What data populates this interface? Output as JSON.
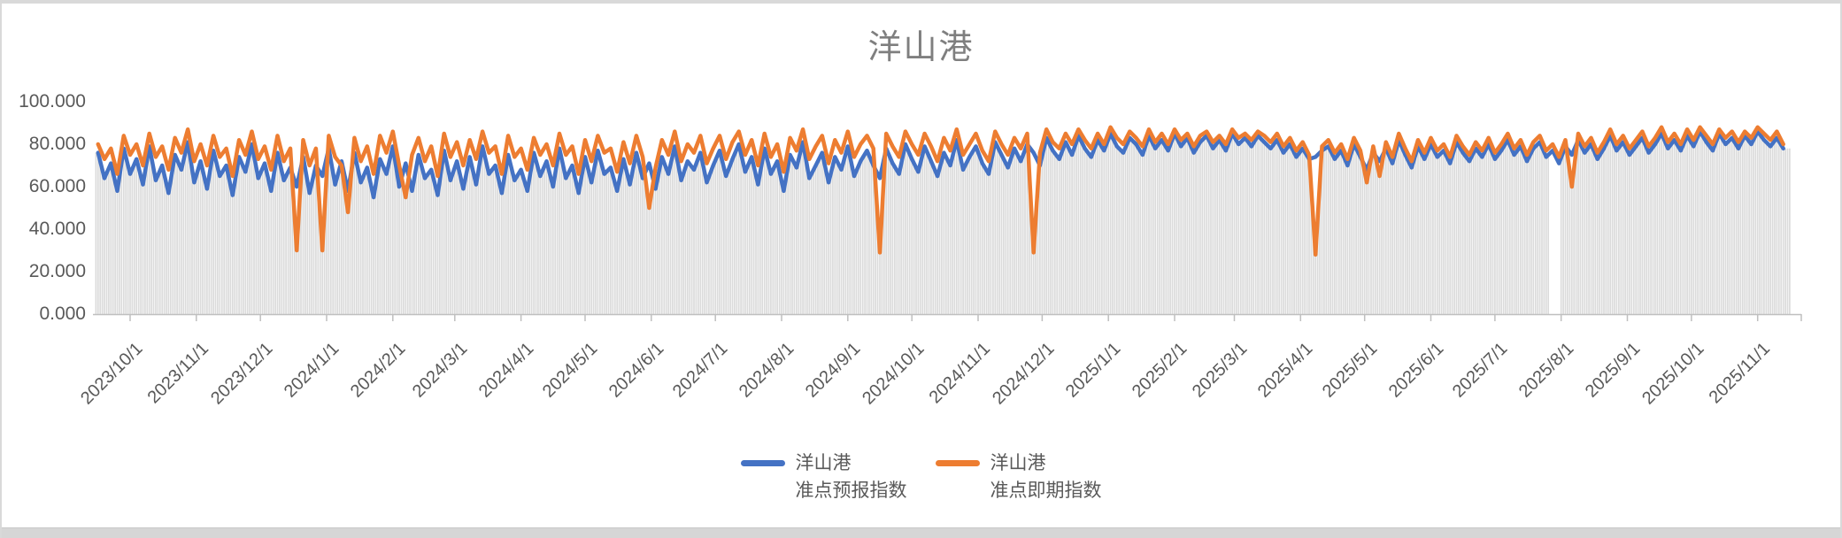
{
  "window": {
    "background": "#ffffff",
    "edge_color": "#d9d9d9",
    "bottom_strip_color": "#d6d6d6"
  },
  "chart": {
    "title": "洋山港",
    "title_color": "#7f7f7f",
    "axis_text_color": "#595959",
    "axis_line_color": "#bfbfbf"
  },
  "legend": [
    {
      "color": "#4472C4",
      "lines": [
        "洋山港",
        "准点预报指数"
      ]
    },
    {
      "color": "#ED7D31",
      "lines": [
        "洋山港",
        "准点即期指数"
      ]
    }
  ],
  "chart_data": {
    "type": "line",
    "title": "洋山港",
    "x_start_date": "2023/9/16",
    "start_day_offset": -15,
    "sample_interval_days": 3,
    "x_axis_origin_label": "2023/10/1",
    "x_tick_labels": [
      "2023/10/1",
      "2023/11/1",
      "2023/12/1",
      "2024/1/1",
      "2024/2/1",
      "2024/3/1",
      "2024/4/1",
      "2024/5/1",
      "2024/6/1",
      "2024/7/1",
      "2024/8/1",
      "2024/9/1",
      "2024/10/1",
      "2024/11/1",
      "2024/12/1",
      "2025/1/1",
      "2025/2/1",
      "2025/3/1",
      "2025/4/1",
      "2025/5/1",
      "2025/6/1",
      "2025/7/1",
      "2025/8/1",
      "2025/9/1",
      "2025/10/1",
      "2025/11/1"
    ],
    "x_tick_day_offsets": [
      0,
      31,
      61,
      92,
      123,
      152,
      183,
      213,
      244,
      274,
      305,
      336,
      366,
      397,
      427,
      458,
      489,
      517,
      548,
      578,
      609,
      639,
      670,
      701,
      731,
      762
    ],
    "ylim": [
      0,
      100
    ],
    "y_tick_values": [
      100,
      80,
      60,
      40,
      20,
      0
    ],
    "y_tick_labels": [
      "100.000",
      "80.000",
      "60.000",
      "40.000",
      "20.000",
      "0.000"
    ],
    "grid": false,
    "legend_position": "bottom",
    "missing_data_days": [
      665,
      669
    ],
    "background_bars": {
      "color": "#dbdbdb",
      "height_rule": "min(forecast, spot)"
    },
    "series": [
      {
        "name": "洋山港 准点预报指数",
        "color": "#4472C4",
        "values": [
          76,
          64,
          71,
          58,
          78,
          66,
          73,
          61,
          79,
          63,
          70,
          57,
          75,
          68,
          81,
          62,
          72,
          59,
          77,
          65,
          70,
          56,
          74,
          67,
          80,
          64,
          71,
          58,
          76,
          63,
          69,
          60,
          74,
          57,
          70,
          65,
          78,
          61,
          72,
          58,
          76,
          62,
          69,
          55,
          73,
          66,
          79,
          60,
          71,
          58,
          75,
          64,
          68,
          56,
          77,
          63,
          72,
          59,
          74,
          61,
          79,
          66,
          70,
          57,
          75,
          63,
          68,
          58,
          76,
          65,
          72,
          60,
          78,
          64,
          70,
          57,
          74,
          62,
          77,
          66,
          69,
          58,
          73,
          61,
          76,
          64,
          71,
          59,
          74,
          66,
          79,
          63,
          72,
          68,
          76,
          62,
          70,
          77,
          65,
          73,
          80,
          67,
          74,
          61,
          78,
          66,
          72,
          58,
          75,
          69,
          81,
          64,
          70,
          76,
          62,
          74,
          68,
          79,
          65,
          72,
          77,
          70,
          64,
          78,
          71,
          66,
          80,
          73,
          67,
          79,
          72,
          65,
          76,
          70,
          82,
          68,
          74,
          79,
          71,
          66,
          81,
          75,
          69,
          78,
          72,
          80,
          76,
          70,
          83,
          77,
          73,
          81,
          75,
          84,
          78,
          74,
          82,
          77,
          85,
          79,
          76,
          83,
          80,
          75,
          84,
          78,
          82,
          77,
          85,
          79,
          83,
          76,
          81,
          84,
          78,
          82,
          77,
          85,
          80,
          83,
          79,
          84,
          81,
          78,
          82,
          76,
          80,
          74,
          78,
          73,
          74,
          77,
          79,
          73,
          77,
          70,
          80,
          74,
          68,
          76,
          72,
          78,
          71,
          82,
          75,
          69,
          79,
          73,
          80,
          74,
          77,
          71,
          81,
          76,
          72,
          78,
          74,
          80,
          73,
          77,
          82,
          75,
          79,
          72,
          78,
          81,
          74,
          77,
          71,
          79,
          75,
          82,
          76,
          80,
          73,
          78,
          84,
          77,
          81,
          75,
          79,
          83,
          76,
          80,
          85,
          78,
          82,
          77,
          84,
          79,
          86,
          81,
          77,
          85,
          80,
          83,
          78,
          84,
          80,
          86,
          82,
          79,
          83,
          78
        ]
      },
      {
        "name": "洋山港 准点即期指数",
        "color": "#ED7D31",
        "values": [
          80,
          73,
          78,
          66,
          84,
          75,
          80,
          70,
          85,
          74,
          79,
          68,
          83,
          76,
          87,
          72,
          80,
          70,
          84,
          74,
          78,
          65,
          82,
          75,
          86,
          73,
          79,
          68,
          84,
          72,
          78,
          30,
          82,
          70,
          78,
          30,
          84,
          74,
          70,
          48,
          83,
          72,
          79,
          66,
          84,
          76,
          86,
          70,
          55,
          75,
          83,
          72,
          79,
          65,
          85,
          74,
          81,
          70,
          82,
          73,
          86,
          76,
          79,
          66,
          84,
          74,
          78,
          68,
          83,
          75,
          80,
          70,
          85,
          75,
          79,
          66,
          82,
          72,
          84,
          76,
          78,
          67,
          81,
          71,
          84,
          74,
          50,
          69,
          82,
          75,
          86,
          72,
          80,
          76,
          84,
          71,
          78,
          84,
          73,
          81,
          86,
          75,
          82,
          70,
          85,
          74,
          80,
          67,
          83,
          77,
          87,
          73,
          79,
          84,
          71,
          82,
          76,
          86,
          74,
          80,
          84,
          78,
          29,
          85,
          79,
          74,
          86,
          80,
          75,
          85,
          79,
          72,
          83,
          77,
          87,
          75,
          80,
          85,
          77,
          72,
          86,
          80,
          75,
          83,
          78,
          85,
          29,
          76,
          87,
          81,
          78,
          85,
          80,
          87,
          82,
          78,
          85,
          80,
          88,
          83,
          80,
          86,
          83,
          79,
          87,
          81,
          85,
          80,
          87,
          82,
          85,
          79,
          84,
          86,
          81,
          84,
          80,
          87,
          83,
          85,
          82,
          86,
          84,
          81,
          85,
          79,
          83,
          77,
          81,
          75,
          28,
          79,
          82,
          76,
          80,
          73,
          83,
          77,
          62,
          79,
          65,
          81,
          74,
          85,
          78,
          72,
          82,
          76,
          83,
          77,
          80,
          74,
          84,
          79,
          75,
          81,
          77,
          83,
          76,
          80,
          85,
          78,
          82,
          75,
          81,
          84,
          77,
          80,
          74,
          82,
          60,
          85,
          79,
          83,
          76,
          81,
          87,
          80,
          84,
          78,
          82,
          86,
          79,
          83,
          88,
          81,
          85,
          80,
          87,
          82,
          88,
          84,
          80,
          87,
          83,
          86,
          81,
          86,
          83,
          88,
          85,
          82,
          86,
          80
        ]
      }
    ]
  }
}
